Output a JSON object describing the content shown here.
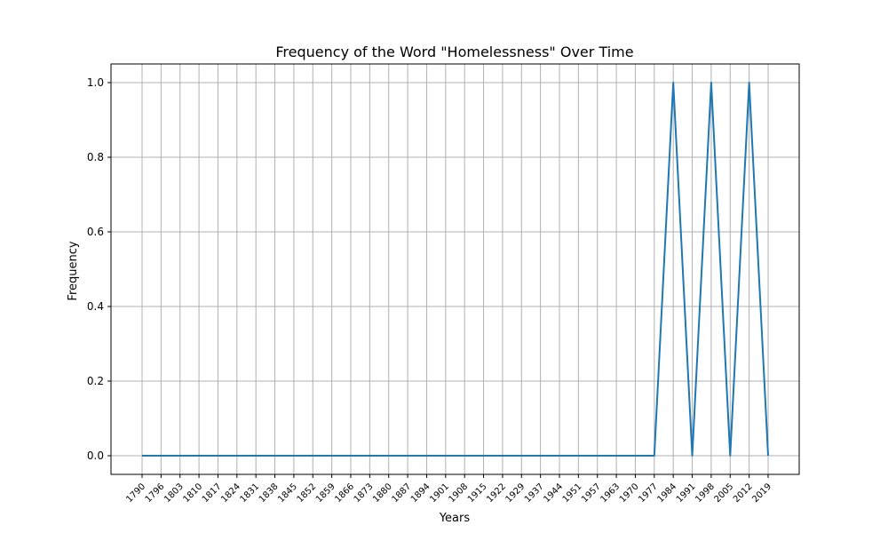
{
  "chart_data": {
    "type": "line",
    "title": "Frequency of the Word \"Homelessness\" Over Time",
    "xlabel": "Years",
    "ylabel": "Frequency",
    "categories": [
      "1790",
      "1796",
      "1803",
      "1810",
      "1817",
      "1824",
      "1831",
      "1838",
      "1845",
      "1852",
      "1859",
      "1866",
      "1873",
      "1880",
      "1887",
      "1894",
      "1901",
      "1908",
      "1915",
      "1922",
      "1929",
      "1937",
      "1944",
      "1951",
      "1957",
      "1963",
      "1970",
      "1977",
      "1984",
      "1991",
      "1998",
      "2005",
      "2012",
      "2019"
    ],
    "series": [
      {
        "color": "#1f77b4",
        "values": [
          0,
          0,
          0,
          0,
          0,
          0,
          0,
          0,
          0,
          0,
          0,
          0,
          0,
          0,
          0,
          0,
          0,
          0,
          0,
          0,
          0,
          0,
          0,
          0,
          0,
          0,
          0,
          0,
          1,
          0,
          1,
          0,
          1,
          0
        ]
      }
    ],
    "yticks": [
      "0.0",
      "0.2",
      "0.4",
      "0.6",
      "0.8",
      "1.0"
    ],
    "ylim": [
      -0.05,
      1.05
    ],
    "grid": true,
    "legend": false
  }
}
